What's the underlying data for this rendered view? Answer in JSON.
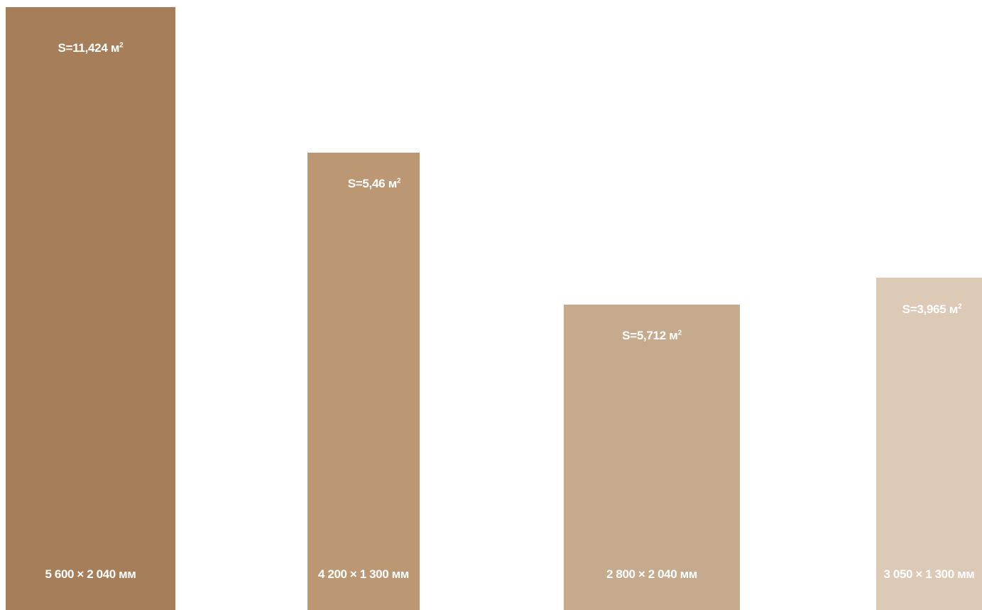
{
  "colors": {
    "slab_1": "#a67f5a",
    "slab_2": "#bb9774",
    "slab_3": "#c6aa8e",
    "slab_4": "#dccab6",
    "text": "#ffffff"
  },
  "slabs": [
    {
      "area_value": "S=11,424 м",
      "area_exp": "2",
      "dimensions": "5 600 × 2 040 мм"
    },
    {
      "area_value": "S=5,46 м",
      "area_exp": "2",
      "dimensions": "4 200 × 1 300 мм"
    },
    {
      "area_value": "S=5,712 м",
      "area_exp": "2",
      "dimensions": "2 800 × 2 040 мм"
    },
    {
      "area_value": "S=3,965 м",
      "area_exp": "2",
      "dimensions": "3 050 × 1 300 мм"
    }
  ]
}
